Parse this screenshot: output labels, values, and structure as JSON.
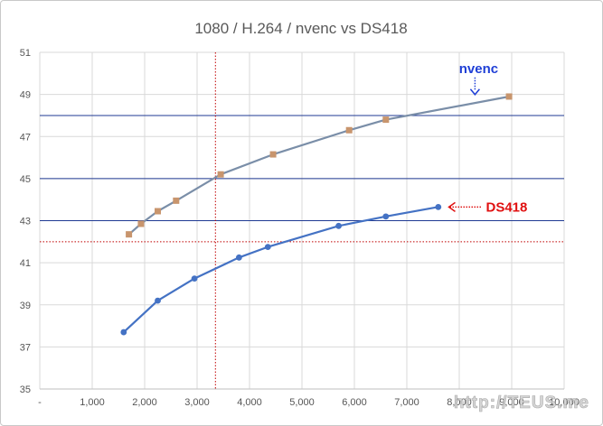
{
  "chart_data": {
    "type": "line",
    "title": "1080 / H.264 / nvenc vs DS418",
    "xlabel": "",
    "ylabel": "",
    "xlim": [
      0,
      10000
    ],
    "ylim": [
      35,
      51
    ],
    "x_ticks": [
      {
        "value": 0,
        "label": "-"
      },
      {
        "value": 1000,
        "label": "1,000"
      },
      {
        "value": 2000,
        "label": "2,000"
      },
      {
        "value": 3000,
        "label": "3,000"
      },
      {
        "value": 4000,
        "label": "4,000"
      },
      {
        "value": 5000,
        "label": "5,000"
      },
      {
        "value": 6000,
        "label": "6,000"
      },
      {
        "value": 7000,
        "label": "7,000"
      },
      {
        "value": 8000,
        "label": "8,000"
      },
      {
        "value": 9000,
        "label": "9,000"
      },
      {
        "value": 10000,
        "label": "10,000"
      }
    ],
    "y_ticks": [
      {
        "value": 35,
        "label": "35"
      },
      {
        "value": 37,
        "label": "37"
      },
      {
        "value": 39,
        "label": "39"
      },
      {
        "value": 41,
        "label": "41"
      },
      {
        "value": 43,
        "label": "43"
      },
      {
        "value": 45,
        "label": "45"
      },
      {
        "value": 47,
        "label": "47"
      },
      {
        "value": 49,
        "label": "49"
      },
      {
        "value": 51,
        "label": "51"
      }
    ],
    "grid": true,
    "series": [
      {
        "color": "#7a8ea8",
        "marker_color": "#c8956d",
        "marker": "square",
        "x": [
          1700,
          1930,
          2250,
          2600,
          3450,
          4450,
          5900,
          6600,
          8950
        ],
        "y": [
          42.35,
          42.85,
          43.45,
          43.95,
          45.2,
          46.15,
          47.3,
          47.8,
          48.9
        ]
      },
      {
        "color": "#4472c4",
        "marker_color": "#4472c4",
        "marker": "circle",
        "x": [
          1600,
          2250,
          2950,
          3800,
          4350,
          5700,
          6600,
          7600
        ],
        "y": [
          37.7,
          39.2,
          40.25,
          41.25,
          41.75,
          42.75,
          43.2,
          43.65
        ]
      }
    ],
    "reference_lines": [
      {
        "axis": "y",
        "value": 48,
        "color": "#1f3a93",
        "style": "solid"
      },
      {
        "axis": "y",
        "value": 45,
        "color": "#1f3a93",
        "style": "solid"
      },
      {
        "axis": "y",
        "value": 43,
        "color": "#1f3a93",
        "style": "solid"
      },
      {
        "axis": "y",
        "value": 42,
        "color": "#c00000",
        "style": "dotted"
      },
      {
        "axis": "x",
        "value": 3350,
        "color": "#c00000",
        "style": "dotted"
      }
    ],
    "annotations": [
      {
        "text": "nvenc",
        "color": "#1f3fd6",
        "points_to_x": 8300,
        "points_to_y": 48.95
      },
      {
        "text": "DS418",
        "color": "#e01010",
        "points_to_x": 7750,
        "points_to_y": 43.65
      }
    ]
  },
  "watermark": "http://TEUS.me"
}
